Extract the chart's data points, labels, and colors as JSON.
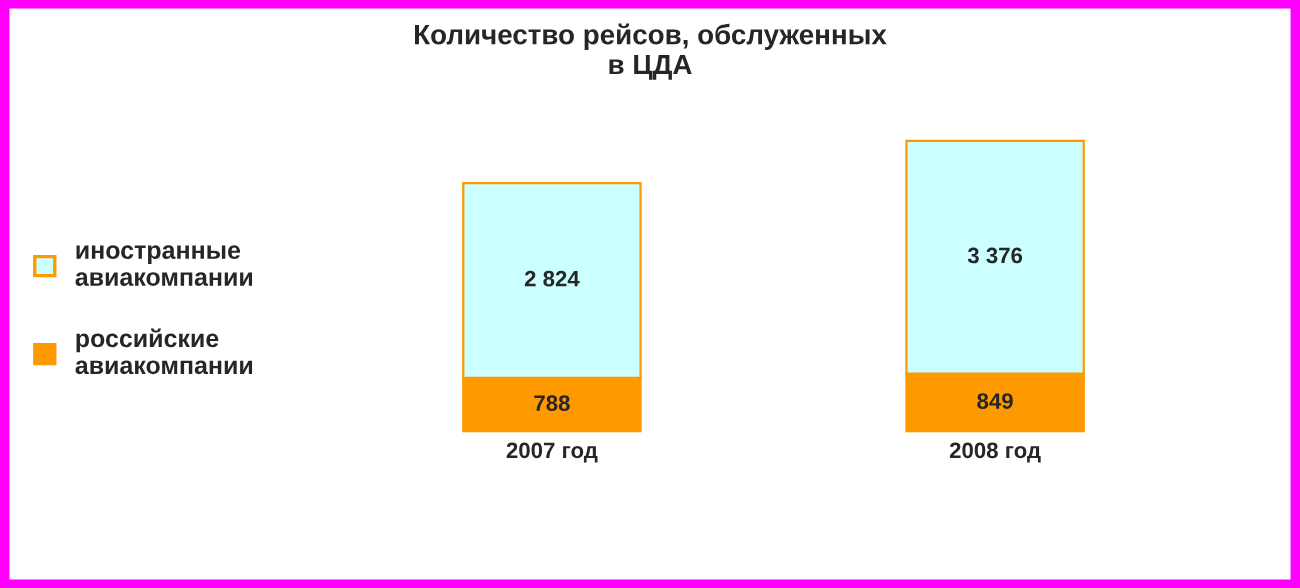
{
  "chart_data": {
    "type": "bar",
    "stacked": true,
    "title": "Количество рейсов, обслуженных\nв ЦДА",
    "categories": [
      "2007 год",
      "2008 год"
    ],
    "series": [
      {
        "name": "российские\nавиакомпании",
        "color": "#ff9900",
        "values": [
          788,
          849
        ],
        "value_labels": [
          "788",
          "849"
        ]
      },
      {
        "name": "иностранные\nавиакомпании",
        "color": "#ccffff",
        "values": [
          2824,
          3376
        ],
        "value_labels": [
          "2 824",
          "3 376"
        ]
      }
    ],
    "legend": "left",
    "grid": false
  }
}
